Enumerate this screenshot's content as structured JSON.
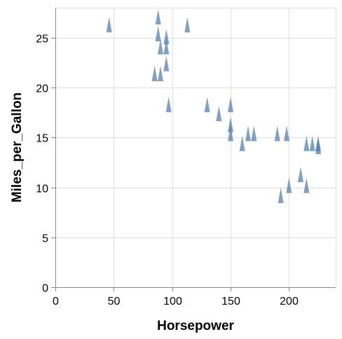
{
  "chart_data": {
    "type": "scatter",
    "mark": "triangle",
    "title": "",
    "xlabel": "Horsepower",
    "ylabel": "Miles_per_Gallon",
    "xlim": [
      0,
      240
    ],
    "ylim": [
      0,
      28
    ],
    "x_ticks": [
      "0",
      "50",
      "100",
      "150",
      "200"
    ],
    "y_ticks": [
      "0",
      "5",
      "10",
      "15",
      "20",
      "25"
    ],
    "x_tick_values": [
      0,
      50,
      100,
      150,
      200
    ],
    "y_tick_values": [
      0,
      5,
      10,
      15,
      20,
      25
    ],
    "grid": true,
    "point_color": "#4c78a8",
    "points": [
      {
        "x": 46,
        "y": 26.3
      },
      {
        "x": 88,
        "y": 27.1
      },
      {
        "x": 88,
        "y": 25.4
      },
      {
        "x": 90,
        "y": 24.1
      },
      {
        "x": 95,
        "y": 25.1
      },
      {
        "x": 95,
        "y": 24.1
      },
      {
        "x": 113,
        "y": 26.3
      },
      {
        "x": 85,
        "y": 21.4
      },
      {
        "x": 90,
        "y": 21.4
      },
      {
        "x": 95,
        "y": 22.4
      },
      {
        "x": 97,
        "y": 18.3
      },
      {
        "x": 130,
        "y": 18.3
      },
      {
        "x": 140,
        "y": 17.4
      },
      {
        "x": 150,
        "y": 18.3
      },
      {
        "x": 150,
        "y": 16.3
      },
      {
        "x": 150,
        "y": 15.4
      },
      {
        "x": 160,
        "y": 14.4
      },
      {
        "x": 165,
        "y": 15.4
      },
      {
        "x": 170,
        "y": 15.4
      },
      {
        "x": 190,
        "y": 15.4
      },
      {
        "x": 198,
        "y": 15.4
      },
      {
        "x": 215,
        "y": 14.4
      },
      {
        "x": 220,
        "y": 14.4
      },
      {
        "x": 225,
        "y": 14.4
      },
      {
        "x": 225,
        "y": 14.1
      },
      {
        "x": 193,
        "y": 9.2
      },
      {
        "x": 200,
        "y": 10.2
      },
      {
        "x": 210,
        "y": 11.3
      },
      {
        "x": 215,
        "y": 10.2
      }
    ]
  }
}
